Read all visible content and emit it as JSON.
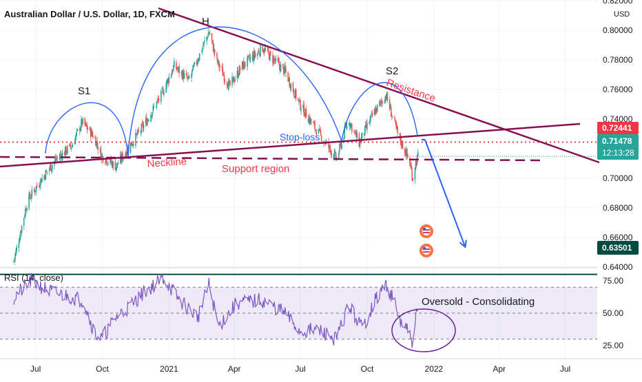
{
  "symbol_title": "Australian Dollar / U.S. Dollar, 1D, FXCM",
  "currency": "USD",
  "chart_data": [
    {
      "type": "candlestick",
      "title": "Australian Dollar / U.S. Dollar, 1D, FXCM",
      "ylabel": "USD",
      "ylim": [
        0.6395,
        0.8205
      ],
      "y_ticks": [
        "0.82000",
        "0.80000",
        "0.78000",
        "0.76000",
        "0.74000",
        "0.70000",
        "0.68000",
        "0.66000",
        "0.64000"
      ],
      "x_ticks": [
        "Jul",
        "Oct",
        "2021",
        "Apr",
        "Jul",
        "Oct",
        "2022",
        "Apr",
        "Jul"
      ],
      "price_path": [
        {
          "x": "2020-06-01",
          "y": 0.644
        },
        {
          "x": "2020-06-20",
          "y": 0.685
        },
        {
          "x": "2020-07-10",
          "y": 0.7
        },
        {
          "x": "2020-07-28",
          "y": 0.712
        },
        {
          "x": "2020-08-20",
          "y": 0.722
        },
        {
          "x": "2020-09-03",
          "y": 0.738
        },
        {
          "x": "2020-09-20",
          "y": 0.728
        },
        {
          "x": "2020-09-30",
          "y": 0.715
        },
        {
          "x": "2020-10-20",
          "y": 0.708
        },
        {
          "x": "2020-11-05",
          "y": 0.72
        },
        {
          "x": "2020-11-25",
          "y": 0.734
        },
        {
          "x": "2020-12-20",
          "y": 0.755
        },
        {
          "x": "2021-01-08",
          "y": 0.776
        },
        {
          "x": "2021-01-28",
          "y": 0.766
        },
        {
          "x": "2021-02-25",
          "y": 0.799
        },
        {
          "x": "2021-03-08",
          "y": 0.779
        },
        {
          "x": "2021-03-25",
          "y": 0.762
        },
        {
          "x": "2021-04-12",
          "y": 0.776
        },
        {
          "x": "2021-05-10",
          "y": 0.788
        },
        {
          "x": "2021-06-10",
          "y": 0.772
        },
        {
          "x": "2021-06-30",
          "y": 0.75
        },
        {
          "x": "2021-07-20",
          "y": 0.735
        },
        {
          "x": "2021-08-20",
          "y": 0.713
        },
        {
          "x": "2021-09-05",
          "y": 0.74
        },
        {
          "x": "2021-09-20",
          "y": 0.724
        },
        {
          "x": "2021-10-10",
          "y": 0.744
        },
        {
          "x": "2021-10-27",
          "y": 0.756
        },
        {
          "x": "2021-11-12",
          "y": 0.73
        },
        {
          "x": "2021-11-28",
          "y": 0.712
        },
        {
          "x": "2021-12-03",
          "y": 0.7
        },
        {
          "x": "2021-12-06",
          "y": 0.709
        },
        {
          "x": "2021-12-10",
          "y": 0.715
        }
      ],
      "drawings": {
        "pattern_labels": [
          "S1",
          "H",
          "S2"
        ],
        "resistance_label": "Resistance",
        "neckline_label": "Neckline",
        "support_label": "Support region",
        "stoploss_label": "Stop-loss",
        "stoploss_level": "0.72441",
        "current_price": "0.71478",
        "countdown": "12:13:28",
        "target_level": "0.63501"
      },
      "colors": {
        "resistance_line": "#880e4f",
        "arcs": "#2962ff",
        "stoploss_line": "#f23645",
        "target_line": "#004d40",
        "annotation_text": "#f23645",
        "stoploss_text": "#2962ff",
        "projection_arrow": "#2962ff",
        "up_candle": "#26a69a",
        "down_candle": "#ef5350"
      }
    },
    {
      "type": "line",
      "title": "RSI (14, close)",
      "ylim": [
        15,
        85
      ],
      "y_ticks": [
        "75.00",
        "50.00",
        "25.00"
      ],
      "band": [
        30,
        70
      ],
      "annotation": "Oversold - Consolidating",
      "rsi_path": [
        {
          "x": "2020-06-01",
          "y": 62
        },
        {
          "x": "2020-06-25",
          "y": 75
        },
        {
          "x": "2020-07-20",
          "y": 67
        },
        {
          "x": "2020-08-15",
          "y": 63
        },
        {
          "x": "2020-09-05",
          "y": 60
        },
        {
          "x": "2020-09-20",
          "y": 35
        },
        {
          "x": "2020-09-30",
          "y": 30
        },
        {
          "x": "2020-10-20",
          "y": 47
        },
        {
          "x": "2020-11-05",
          "y": 54
        },
        {
          "x": "2020-12-01",
          "y": 68
        },
        {
          "x": "2020-12-25",
          "y": 77
        },
        {
          "x": "2021-01-15",
          "y": 60
        },
        {
          "x": "2021-02-10",
          "y": 47
        },
        {
          "x": "2021-02-25",
          "y": 72
        },
        {
          "x": "2021-03-10",
          "y": 40
        },
        {
          "x": "2021-04-05",
          "y": 58
        },
        {
          "x": "2021-05-10",
          "y": 60
        },
        {
          "x": "2021-06-10",
          "y": 50
        },
        {
          "x": "2021-06-30",
          "y": 36
        },
        {
          "x": "2021-07-25",
          "y": 37
        },
        {
          "x": "2021-08-20",
          "y": 30
        },
        {
          "x": "2021-09-05",
          "y": 56
        },
        {
          "x": "2021-09-25",
          "y": 38
        },
        {
          "x": "2021-10-10",
          "y": 58
        },
        {
          "x": "2021-10-27",
          "y": 72
        },
        {
          "x": "2021-11-05",
          "y": 62
        },
        {
          "x": "2021-11-15",
          "y": 44
        },
        {
          "x": "2021-11-25",
          "y": 37
        },
        {
          "x": "2021-12-03",
          "y": 25
        },
        {
          "x": "2021-12-06",
          "y": 46
        },
        {
          "x": "2021-12-10",
          "y": 49
        }
      ],
      "line_color": "#7e57c2",
      "band_color": "#7e57c2"
    }
  ]
}
